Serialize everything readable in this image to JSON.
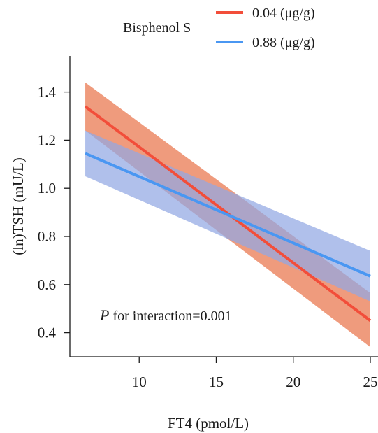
{
  "chart_data": {
    "type": "line",
    "legend_title": "Bisphenol S",
    "xlabel": "FT4 (pmol/L)",
    "ylabel": "(ln)TSH (mU/L)",
    "xlim": [
      5.5,
      25.5
    ],
    "ylim": [
      0.3,
      1.55
    ],
    "x_ticks": [
      10,
      15,
      20,
      25
    ],
    "y_ticks": [
      0.4,
      0.6,
      0.8,
      1.0,
      1.2,
      1.4
    ],
    "x_tick_labels": [
      "10",
      "15",
      "20",
      "25"
    ],
    "y_tick_labels": [
      "0.4",
      "0.6",
      "0.8",
      "1.0",
      "1.2",
      "1.4"
    ],
    "grid": false,
    "legend_position": "top-center",
    "annotation": {
      "italic": "P",
      "rest": " for interaction=0.001"
    },
    "series": [
      {
        "name": "0.04 (μg/g)",
        "color": "#f24e3a",
        "band_color": "#eb8560",
        "x": [
          6.5,
          25.0
        ],
        "y": [
          1.34,
          0.45
        ],
        "upper": [
          1.44,
          0.565
        ],
        "lower": [
          1.24,
          0.34
        ]
      },
      {
        "name": "0.88 (μg/g)",
        "color": "#4a97f2",
        "band_color": "#92a8e3",
        "x": [
          6.5,
          25.0
        ],
        "y": [
          1.145,
          0.635
        ],
        "upper": [
          1.24,
          0.74
        ],
        "lower": [
          1.05,
          0.53
        ]
      }
    ]
  }
}
